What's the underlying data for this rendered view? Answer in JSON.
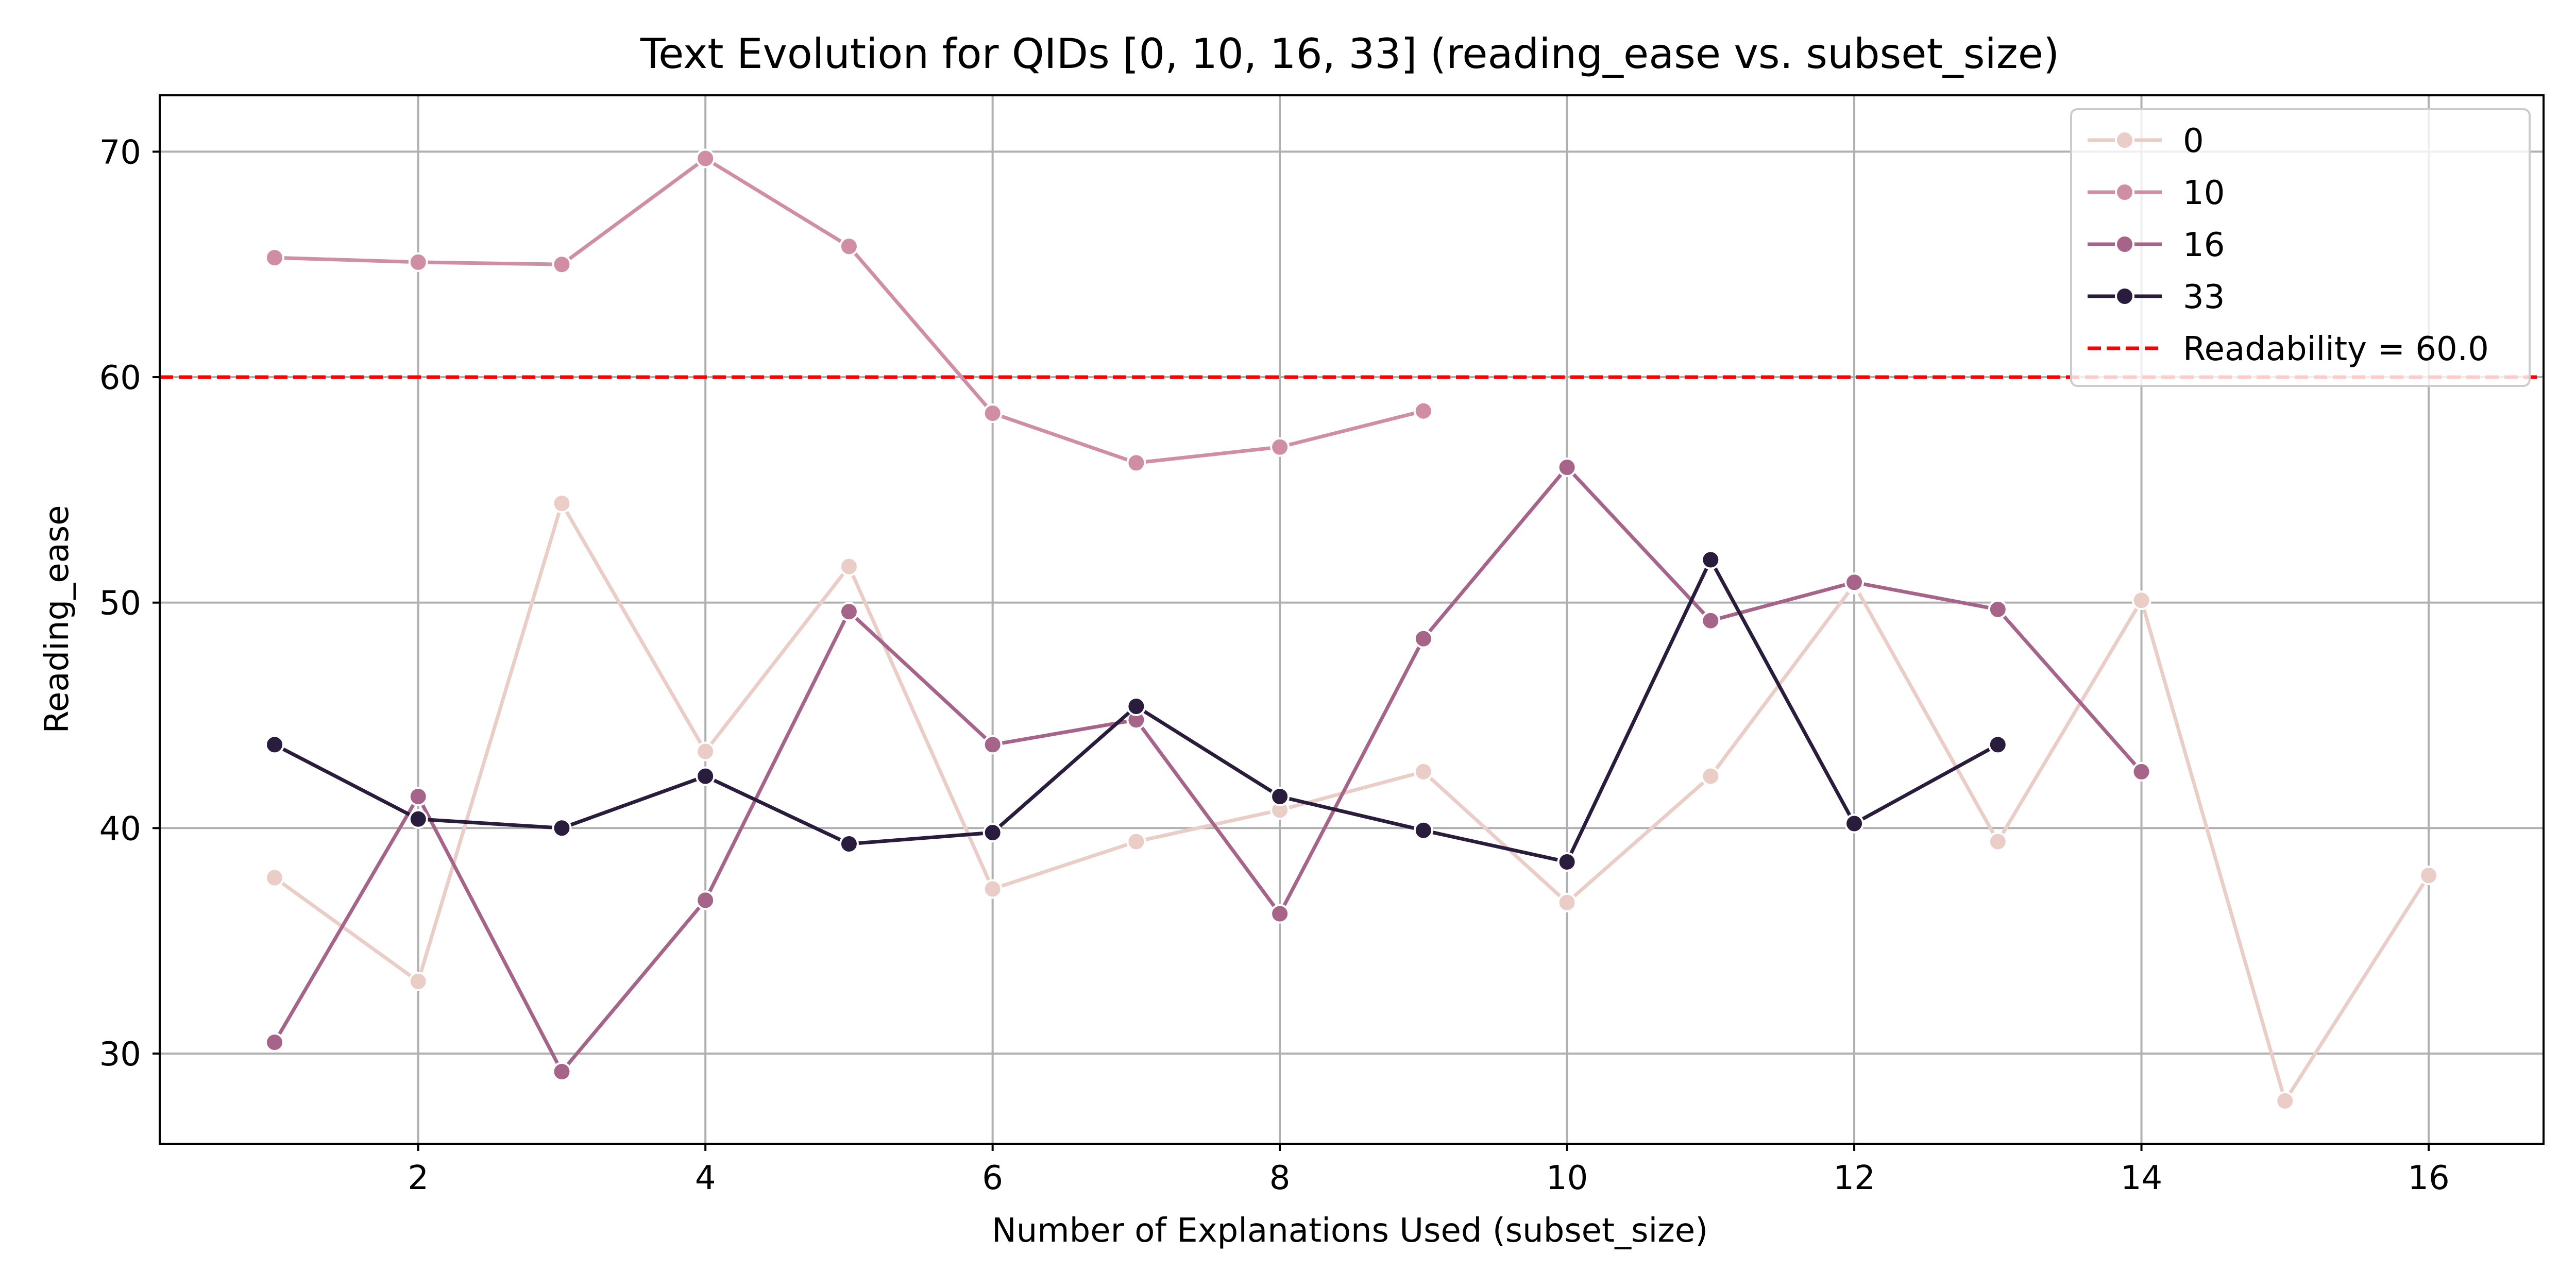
{
  "chart_data": {
    "type": "line",
    "title": "Text Evolution for QIDs [0, 10, 16, 33] (reading_ease vs. subset_size)",
    "xlabel": "Number of Explanations Used (subset_size)",
    "ylabel": "Reading_ease",
    "xlim": [
      0.2,
      16.8
    ],
    "ylim": [
      26.0,
      72.5
    ],
    "xticks": [
      2,
      4,
      6,
      8,
      10,
      12,
      14,
      16
    ],
    "yticks": [
      30,
      40,
      50,
      60,
      70
    ],
    "grid": true,
    "legend_position": "top-right",
    "series": [
      {
        "name": "0",
        "color": "#ebcdc7",
        "points": [
          [
            1,
            37.8
          ],
          [
            2,
            33.2
          ],
          [
            3,
            54.4
          ],
          [
            4,
            43.4
          ],
          [
            5,
            51.6
          ],
          [
            6,
            37.3
          ],
          [
            7,
            39.4
          ],
          [
            8,
            40.8
          ],
          [
            9,
            42.5
          ],
          [
            10,
            36.7
          ],
          [
            11,
            42.3
          ],
          [
            12,
            50.8
          ],
          [
            13,
            39.4
          ],
          [
            14,
            50.1
          ],
          [
            15,
            27.9
          ],
          [
            16,
            37.9
          ]
        ]
      },
      {
        "name": "10",
        "color": "#cf8ea4",
        "points": [
          [
            1,
            65.3
          ],
          [
            2,
            65.1
          ],
          [
            3,
            65.0
          ],
          [
            4,
            69.7
          ],
          [
            5,
            65.8
          ],
          [
            6,
            58.4
          ],
          [
            7,
            56.2
          ],
          [
            8,
            56.9
          ],
          [
            9,
            58.5
          ]
        ]
      },
      {
        "name": "16",
        "color": "#a66489",
        "points": [
          [
            1,
            30.5
          ],
          [
            2,
            41.4
          ],
          [
            3,
            29.2
          ],
          [
            4,
            36.8
          ],
          [
            5,
            49.6
          ],
          [
            6,
            43.7
          ],
          [
            7,
            44.8
          ],
          [
            8,
            36.2
          ],
          [
            9,
            48.4
          ],
          [
            10,
            56.0
          ],
          [
            11,
            49.2
          ],
          [
            12,
            50.9
          ],
          [
            13,
            49.7
          ],
          [
            14,
            42.5
          ]
        ]
      },
      {
        "name": "33",
        "color": "#2a1c3c",
        "points": [
          [
            1,
            43.7
          ],
          [
            2,
            40.4
          ],
          [
            3,
            40.0
          ],
          [
            4,
            42.3
          ],
          [
            5,
            39.3
          ],
          [
            6,
            39.8
          ],
          [
            7,
            45.4
          ],
          [
            8,
            41.4
          ],
          [
            9,
            39.9
          ],
          [
            10,
            38.5
          ],
          [
            11,
            51.9
          ],
          [
            12,
            40.2
          ],
          [
            13,
            43.7
          ]
        ]
      }
    ],
    "reference_line": {
      "label": "Readability = 60.0",
      "y": 60.0,
      "color": "#ff0000",
      "style": "dashed"
    }
  }
}
